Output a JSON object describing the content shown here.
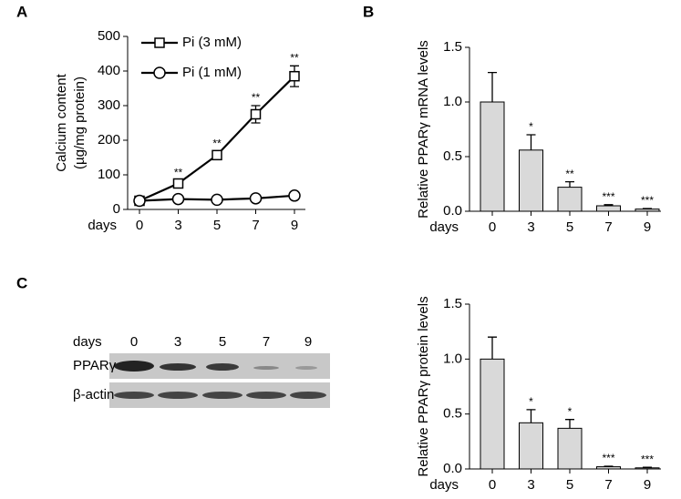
{
  "chart_data": [
    {
      "type": "line",
      "panel": "A",
      "xlabel": "days",
      "ylabel": [
        "Calcium content",
        "(µg/mg protein)"
      ],
      "categories": [
        "0",
        "3",
        "5",
        "7",
        "9"
      ],
      "ylim": [
        0,
        500
      ],
      "yticks": [
        0,
        100,
        200,
        300,
        400,
        500
      ],
      "series": [
        {
          "name": "Pi (3 mM)",
          "color": "#000000",
          "marker": "square",
          "values": [
            25,
            75,
            157,
            275,
            385
          ],
          "errors": [
            5,
            8,
            10,
            25,
            30
          ],
          "annotations": [
            null,
            "**",
            "**",
            "**",
            "**"
          ]
        },
        {
          "name": "Pi (1 mM)",
          "color": "#000000",
          "marker": "circle",
          "values": [
            25,
            30,
            28,
            32,
            40
          ],
          "errors": [
            3,
            3,
            3,
            3,
            4
          ]
        }
      ]
    },
    {
      "type": "bar",
      "panel": "B",
      "xlabel": "days",
      "ylabel": [
        "Relative PPARγ mRNA levels"
      ],
      "categories": [
        "0",
        "3",
        "5",
        "7",
        "9"
      ],
      "ylim": [
        0,
        1.5
      ],
      "yticks": [
        {
          "value": 0,
          "label": "0.0"
        },
        0.5,
        {
          "value": 1,
          "label": "1.0"
        },
        1.5
      ],
      "series": [
        {
          "color": "#d9d9d9",
          "values": [
            1.0,
            0.56,
            0.22,
            0.05,
            0.02
          ],
          "errors": [
            0.27,
            0.14,
            0.05,
            0.01,
            0.005
          ],
          "annotations": [
            null,
            "*",
            "**",
            "***",
            "***"
          ]
        }
      ]
    },
    {
      "type": "bar",
      "xlabel": "days",
      "ylabel": [
        "Relative PPARγ protein levels"
      ],
      "categories": [
        "0",
        "3",
        "5",
        "7",
        "9"
      ],
      "ylim": [
        0,
        1.5
      ],
      "yticks": [
        {
          "value": 0,
          "label": "0.0"
        },
        0.5,
        {
          "value": 1,
          "label": "1.0"
        },
        1.5
      ],
      "series": [
        {
          "color": "#d9d9d9",
          "values": [
            1.0,
            0.42,
            0.37,
            0.02,
            0.01
          ],
          "errors": [
            0.2,
            0.12,
            0.08,
            0.005,
            0.005
          ],
          "annotations": [
            null,
            "*",
            "*",
            "***",
            "***"
          ]
        }
      ]
    }
  ],
  "blot": {
    "panel": "C",
    "xlabel": "days",
    "lanes": [
      "0",
      "3",
      "5",
      "7",
      "9"
    ],
    "rows": [
      "PPARγ",
      "β-actin"
    ]
  }
}
